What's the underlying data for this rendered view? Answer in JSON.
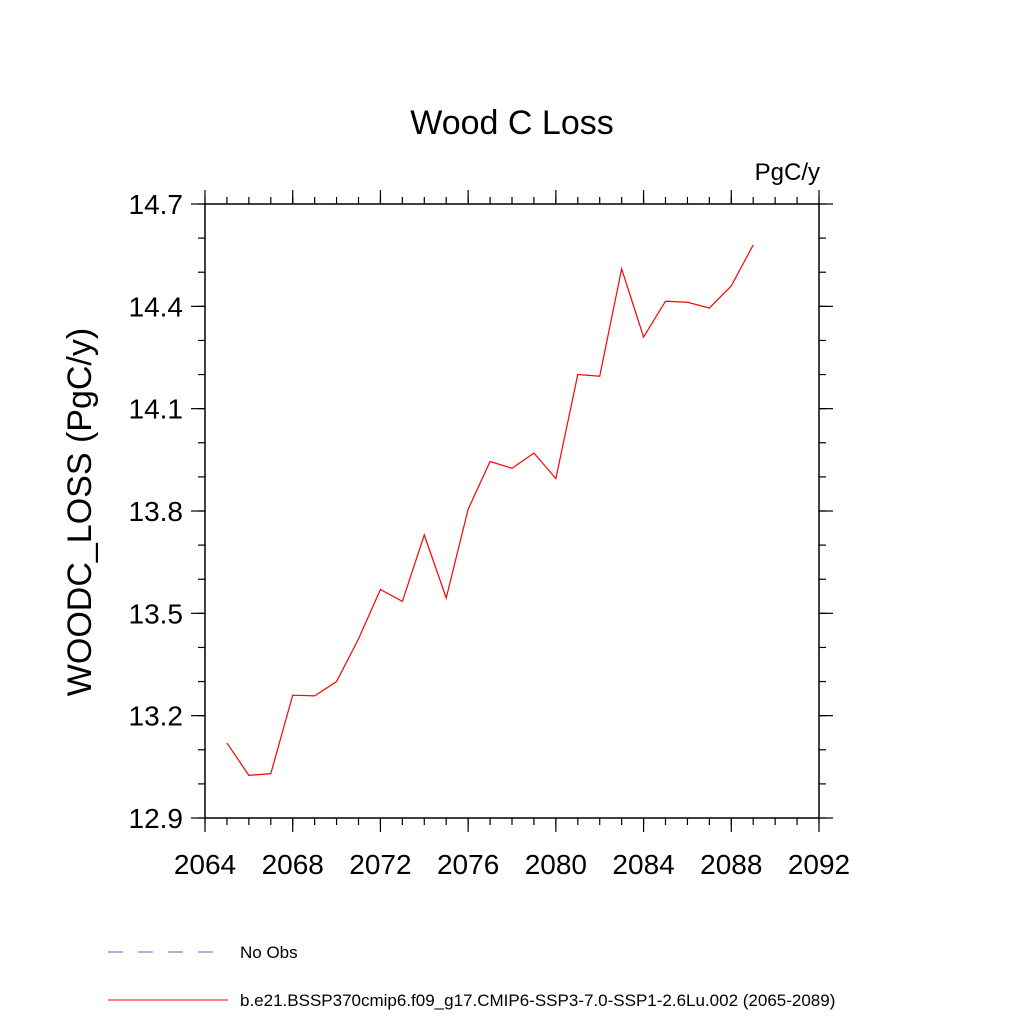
{
  "chart_data": {
    "type": "line",
    "title": "Wood C Loss",
    "units": "PgC/y",
    "ylabel": "WOODC_LOSS  (PgC/y)",
    "xlabel": "",
    "xlim": [
      2064,
      2092
    ],
    "ylim": [
      12.9,
      14.7
    ],
    "xticks": [
      2064,
      2068,
      2072,
      2076,
      2080,
      2084,
      2088,
      2092
    ],
    "yticks": [
      12.9,
      13.2,
      13.5,
      13.8,
      14.1,
      14.4,
      14.7
    ],
    "yticks_labels": [
      "12.9",
      "13.2",
      "13.5",
      "13.8",
      "14.1",
      "14.4",
      "14.7"
    ],
    "x_minor_step": 1,
    "y_minor_step": 0.1,
    "grid": false,
    "legend_position": "bottom",
    "series": [
      {
        "name": "b.e21.BSSP370cmip6.f09_g17.CMIP6-SSP3-7.0-SSP1-2.6Lu.002 (2065-2089)",
        "color": "#ff0000",
        "dash": "solid",
        "x": [
          2065,
          2066,
          2067,
          2068,
          2069,
          2070,
          2071,
          2072,
          2073,
          2074,
          2075,
          2076,
          2077,
          2078,
          2079,
          2080,
          2081,
          2082,
          2083,
          2084,
          2085,
          2086,
          2087,
          2088,
          2089
        ],
        "values": [
          13.12,
          13.025,
          13.03,
          13.26,
          13.258,
          13.3,
          13.425,
          13.57,
          13.535,
          13.73,
          13.545,
          13.805,
          13.945,
          13.925,
          13.97,
          13.895,
          14.2,
          14.195,
          14.51,
          14.31,
          14.415,
          14.412,
          14.395,
          14.46,
          14.58
        ]
      }
    ],
    "legend": [
      {
        "label": "No Obs",
        "color": "#6a5acd",
        "dash": "dashed"
      },
      {
        "label": "b.e21.BSSP370cmip6.f09_g17.CMIP6-SSP3-7.0-SSP1-2.6Lu.002 (2065-2089)",
        "color": "#ff0000",
        "dash": "solid"
      }
    ]
  }
}
